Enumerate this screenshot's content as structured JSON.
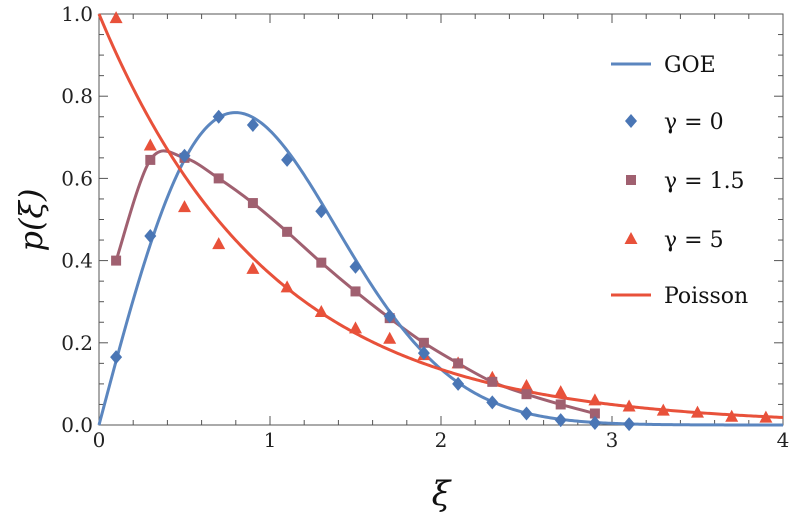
{
  "chart_data": {
    "type": "line",
    "title": "",
    "xlabel": "ξ",
    "ylabel": "p(ξ)",
    "xlim": [
      0,
      4
    ],
    "ylim": [
      0,
      1
    ],
    "xticks": [
      "0",
      "1",
      "2",
      "3",
      "4"
    ],
    "yticks": [
      "0.0",
      "0.2",
      "0.4",
      "0.6",
      "0.8",
      "1.0"
    ],
    "grid": false,
    "legend_position": "top-right",
    "colors": {
      "goe": "#5b86bf",
      "gamma0": "#4a76b5",
      "gamma15": "#a06070",
      "gamma5": "#e8513a",
      "poisson": "#e8513a"
    },
    "series": [
      {
        "key": "goe",
        "name": "GOE",
        "kind": "curve",
        "formula": "(pi/2) x exp(-pi x^2/4)"
      },
      {
        "key": "gamma0",
        "name": "γ = 0",
        "kind": "scatter",
        "marker": "diamond",
        "x": [
          0.1,
          0.3,
          0.5,
          0.7,
          0.9,
          1.1,
          1.3,
          1.5,
          1.7,
          1.9,
          2.1,
          2.3,
          2.5,
          2.7,
          2.9,
          3.1
        ],
        "y": [
          0.165,
          0.46,
          0.655,
          0.75,
          0.73,
          0.645,
          0.52,
          0.385,
          0.265,
          0.175,
          0.1,
          0.055,
          0.028,
          0.012,
          0.005,
          0.002
        ]
      },
      {
        "key": "gamma15",
        "name": "γ = 1.5",
        "kind": "scatter+fit",
        "marker": "square",
        "x": [
          0.1,
          0.3,
          0.5,
          0.7,
          0.9,
          1.1,
          1.3,
          1.5,
          1.7,
          1.9,
          2.1,
          2.3,
          2.5,
          2.7,
          2.9
        ],
        "y": [
          0.4,
          0.645,
          0.65,
          0.6,
          0.54,
          0.47,
          0.395,
          0.325,
          0.26,
          0.2,
          0.15,
          0.105,
          0.075,
          0.05,
          0.028
        ]
      },
      {
        "key": "gamma5",
        "name": "γ = 5",
        "kind": "scatter",
        "marker": "triangle",
        "x": [
          0.1,
          0.3,
          0.5,
          0.7,
          0.9,
          1.1,
          1.3,
          1.5,
          1.7,
          1.9,
          2.1,
          2.3,
          2.5,
          2.7,
          2.9,
          3.1,
          3.3,
          3.5,
          3.7,
          3.9
        ],
        "y": [
          0.99,
          0.68,
          0.53,
          0.44,
          0.38,
          0.335,
          0.275,
          0.235,
          0.21,
          0.17,
          0.15,
          0.115,
          0.095,
          0.08,
          0.06,
          0.045,
          0.035,
          0.03,
          0.02,
          0.018
        ]
      },
      {
        "key": "poisson",
        "name": "Poisson",
        "kind": "curve",
        "formula": "exp(-x)"
      }
    ]
  }
}
